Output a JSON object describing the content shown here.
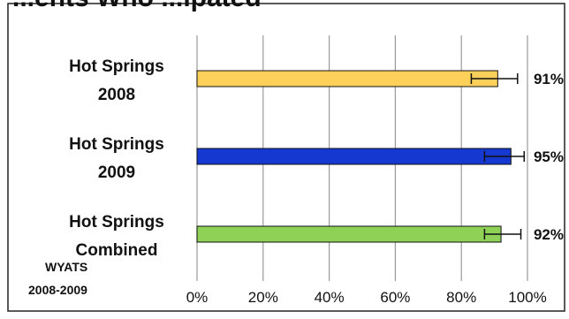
{
  "header_fragment": "...ents Who ...ipated",
  "chart_data": {
    "type": "bar",
    "orientation": "horizontal",
    "categories": [
      [
        "Hot Springs",
        "2008"
      ],
      [
        "Hot Springs",
        "2009"
      ],
      [
        "Hot Springs",
        "Combined"
      ]
    ],
    "values": [
      91,
      95,
      92
    ],
    "value_labels": [
      "91%",
      "95%",
      "92%"
    ],
    "error_bars": [
      {
        "low": 83,
        "high": 97
      },
      {
        "low": 87,
        "high": 99
      },
      {
        "low": 87,
        "high": 98
      }
    ],
    "colors": [
      "#FDD05A",
      "#1538D0",
      "#8ED156"
    ],
    "xlim": [
      0,
      100
    ],
    "x_ticks": [
      "0%",
      "20%",
      "40%",
      "60%",
      "80%",
      "100%"
    ],
    "grid": true,
    "source_note": [
      "WYATS",
      "2008-2009"
    ]
  }
}
